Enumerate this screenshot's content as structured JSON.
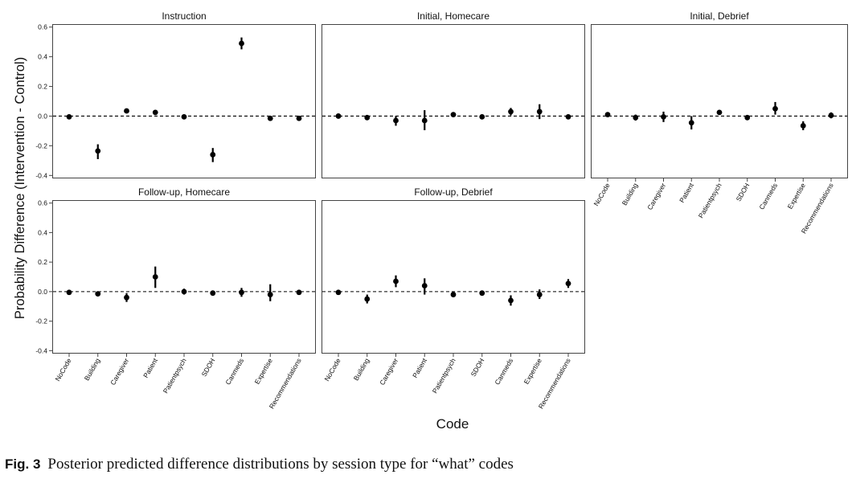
{
  "chart_data": {
    "type": "scatter",
    "kind": "faceted point-range (posterior mean with interval)",
    "xlabel": "Code",
    "ylabel": "Probability Difference (Intervention - Control)",
    "ylim": [
      -0.42,
      0.62
    ],
    "yticks": [
      0.6,
      0.4,
      0.2,
      0.0,
      -0.2,
      -0.4
    ],
    "ytick_labels": [
      "0.6",
      "0.4",
      "0.2",
      "0.0",
      "-0.2",
      "-0.4"
    ],
    "reference_line": {
      "y": 0,
      "style": "dashed"
    },
    "grid": false,
    "categories": [
      "NoCode",
      "Building",
      "Caregiver",
      "Patient",
      "Patientpsych",
      "SDOH",
      "Canmeds",
      "Expertise",
      "Recommendations"
    ],
    "panels": [
      {
        "title": "Instruction",
        "mean": [
          -0.005,
          -0.235,
          0.035,
          0.025,
          -0.005,
          -0.26,
          0.49,
          -0.015,
          -0.015
        ],
        "lower": [
          -0.015,
          -0.29,
          0.025,
          0.015,
          -0.015,
          -0.31,
          0.45,
          -0.025,
          -0.03
        ],
        "upper": [
          0.005,
          -0.19,
          0.045,
          0.035,
          0.005,
          -0.215,
          0.53,
          -0.005,
          0.0
        ]
      },
      {
        "title": "Initial, Homecare",
        "mean": [
          0.0,
          -0.01,
          -0.03,
          -0.03,
          0.01,
          -0.005,
          0.03,
          0.03,
          -0.005
        ],
        "lower": [
          -0.01,
          -0.02,
          -0.065,
          -0.095,
          -0.005,
          -0.015,
          0.005,
          -0.02,
          -0.015
        ],
        "upper": [
          0.01,
          0.0,
          0.0,
          0.04,
          0.025,
          0.005,
          0.055,
          0.08,
          0.005
        ]
      },
      {
        "title": "Initial, Debrief",
        "mean": [
          0.01,
          -0.01,
          -0.005,
          -0.045,
          0.025,
          -0.01,
          0.05,
          -0.065,
          0.005
        ],
        "lower": [
          0.0,
          -0.03,
          -0.04,
          -0.09,
          0.01,
          -0.02,
          0.01,
          -0.095,
          -0.015
        ],
        "upper": [
          0.02,
          0.01,
          0.03,
          0.0,
          0.04,
          0.0,
          0.095,
          -0.035,
          0.025
        ]
      },
      {
        "title": "Follow-up, Homecare",
        "mean": [
          -0.005,
          -0.015,
          -0.04,
          0.1,
          0.0,
          -0.01,
          -0.005,
          -0.02,
          -0.005
        ],
        "lower": [
          -0.015,
          -0.025,
          -0.07,
          0.025,
          -0.02,
          -0.02,
          -0.035,
          -0.065,
          -0.015
        ],
        "upper": [
          0.005,
          -0.005,
          -0.01,
          0.17,
          0.02,
          0.0,
          0.025,
          0.05,
          0.005
        ]
      },
      {
        "title": "Follow-up, Debrief",
        "mean": [
          -0.005,
          -0.05,
          0.07,
          0.04,
          -0.02,
          -0.01,
          -0.06,
          -0.02,
          0.055
        ],
        "lower": [
          -0.015,
          -0.08,
          0.03,
          -0.02,
          -0.035,
          -0.02,
          -0.095,
          -0.05,
          0.025
        ],
        "upper": [
          0.005,
          -0.02,
          0.11,
          0.09,
          -0.005,
          0.0,
          -0.025,
          0.015,
          0.085
        ]
      }
    ]
  },
  "caption": {
    "label": "Fig. 3",
    "text": "Posterior predicted difference distributions by session type for “what” codes"
  }
}
